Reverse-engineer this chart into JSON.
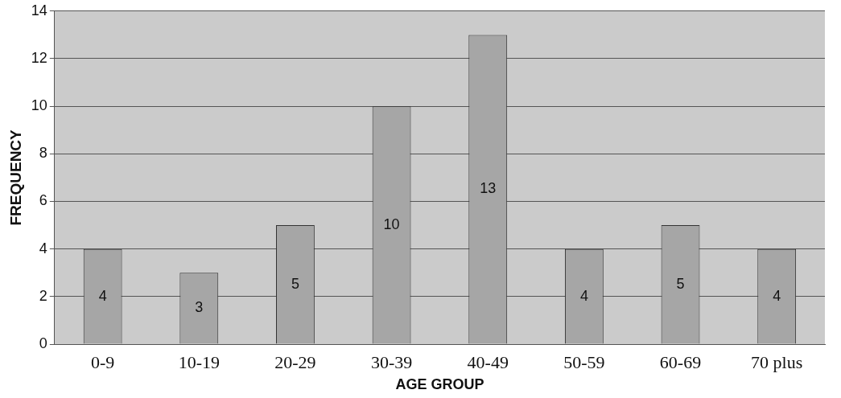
{
  "chart_data": {
    "type": "bar",
    "xlabel": "AGE GROUP",
    "ylabel": "FREQUENCY",
    "categories": [
      "0-9",
      "10-19",
      "20-29",
      "30-39",
      "40-49",
      "50-59",
      "60-69",
      "70 plus"
    ],
    "values": [
      4,
      3,
      5,
      10,
      13,
      4,
      5,
      4
    ],
    "color": "#a6a6a6",
    "ylim": [
      0,
      14
    ],
    "yticks": [
      0,
      2,
      4,
      6,
      8,
      10,
      12,
      14
    ],
    "grid": "y",
    "data_labels": true,
    "legend": false
  }
}
